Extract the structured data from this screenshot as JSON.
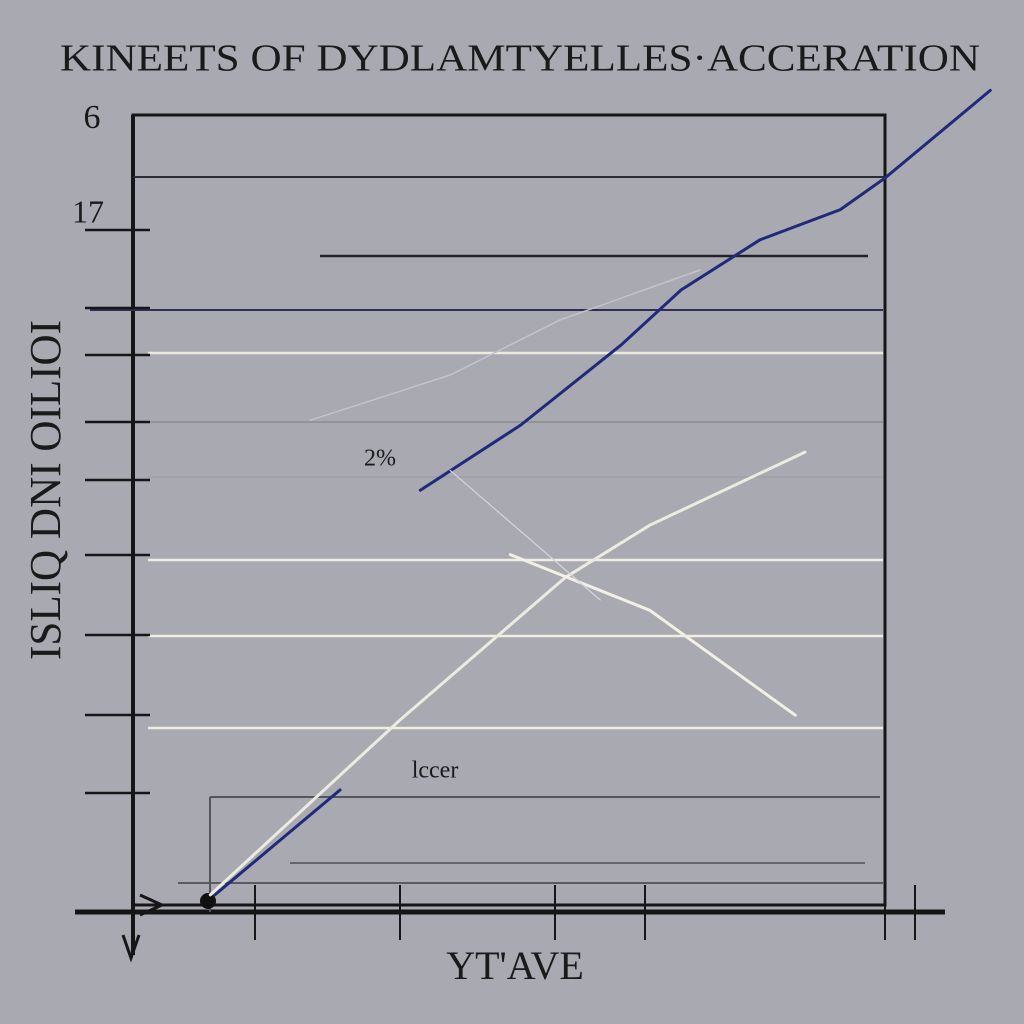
{
  "chart_data": {
    "type": "line",
    "title": "KINEETS OF DYDLAMTYELLES·ACCERATION",
    "x_label": "YT'AVE",
    "y_label": "ISLIQ DNI OILIOI",
    "annotations": [
      "6",
      "17",
      "2%",
      "lccer"
    ],
    "xlim": [
      0,
      115
    ],
    "ylim": [
      0,
      105
    ],
    "series": [
      {
        "color": "#1f2a7a",
        "x": [
          10.9,
          27.6,
          null,
          38.3,
          51.7,
          65.1,
          73.1,
          83.6,
          94.3,
          100.3,
          114.3
        ],
        "values": [
          1.9,
          15.1,
          null,
          52.8,
          61.0,
          71.1,
          78.0,
          84.3,
          88.1,
          92.1,
          103.1
        ]
      },
      {
        "color": "#ecebe0",
        "x": [
          10.3,
          35.6,
          57.6,
          68.9,
          89.6
        ],
        "values": [
          1.9,
          23.9,
          41.8,
          48.4,
          57.6
        ]
      },
      {
        "color": "#f2f0e4",
        "x": [
          50.3,
          68.9,
          88.3
        ],
        "values": [
          44.7,
          37.7,
          24.5
        ]
      },
      {
        "color": "#c4c2cf",
        "x": [
          23.6,
          42.3,
          56.9,
          75.6
        ],
        "values": [
          61.6,
          67.3,
          74.2,
          80.5
        ]
      },
      {
        "color": "#d4d4dc",
        "x": [
          42.3,
          62.3
        ],
        "values": [
          55.3,
          39.0
        ]
      }
    ]
  }
}
